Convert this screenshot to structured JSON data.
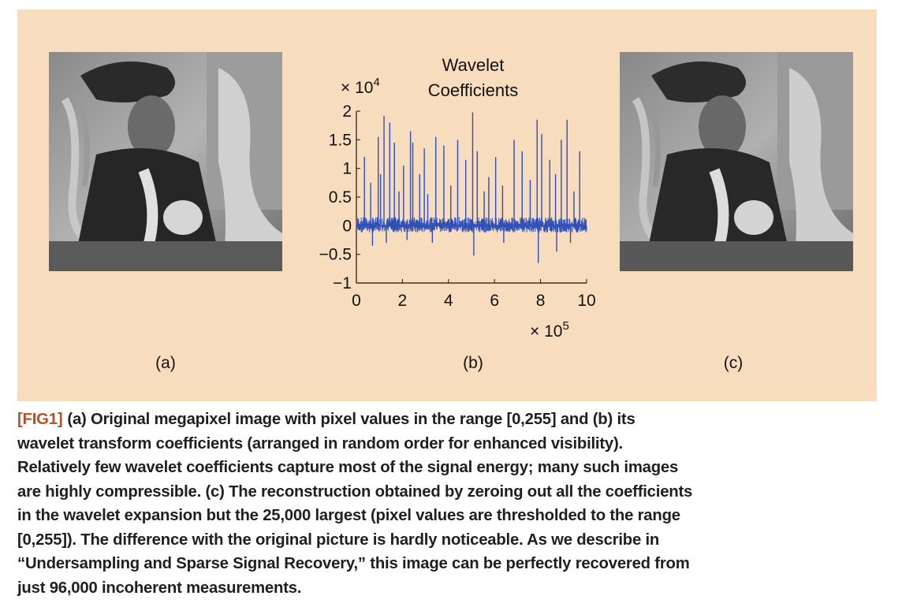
{
  "panel_labels": {
    "a": "(a)",
    "b": "(b)",
    "c": "(c)"
  },
  "colors": {
    "panel_bg": "#f7ddbe",
    "series": "#2e4fb8",
    "caption_tag": "#b4532a"
  },
  "images": {
    "a": {
      "name": "original-megapixel-photo",
      "description_icon": "photo-icon"
    },
    "c": {
      "name": "reconstructed-photo",
      "description_icon": "photo-icon"
    }
  },
  "chart_data": {
    "type": "line",
    "title": "Wavelet Coefficients",
    "title_lines": [
      "Wavelet",
      "Coefficients"
    ],
    "y_multiplier": "× 10",
    "y_multiplier_exp": "4",
    "x_multiplier": "× 10",
    "x_multiplier_exp": "5",
    "xlim": [
      0,
      10
    ],
    "ylim": [
      -1,
      2
    ],
    "x_ticks": [
      "0",
      "2",
      "4",
      "6",
      "8",
      "10"
    ],
    "y_ticks": [
      "2",
      "1.5",
      "1",
      "0.5",
      "0",
      "−0.5",
      "−1"
    ],
    "grid": false,
    "series": [
      {
        "spikes": [
          [
            0.35,
            1.2
          ],
          [
            0.62,
            0.75
          ],
          [
            0.95,
            1.55
          ],
          [
            1.05,
            0.9
          ],
          [
            1.2,
            1.92
          ],
          [
            1.45,
            1.8
          ],
          [
            1.65,
            1.45
          ],
          [
            1.85,
            0.6
          ],
          [
            2.05,
            1.05
          ],
          [
            2.35,
            1.65
          ],
          [
            2.45,
            1.45
          ],
          [
            2.75,
            0.9
          ],
          [
            2.95,
            1.35
          ],
          [
            3.1,
            0.55
          ],
          [
            3.45,
            1.55
          ],
          [
            3.8,
            1.4
          ],
          [
            4.1,
            0.7
          ],
          [
            4.4,
            1.5
          ],
          [
            4.75,
            1.15
          ],
          [
            5.05,
            1.98
          ],
          [
            5.25,
            1.3
          ],
          [
            5.55,
            0.6
          ],
          [
            5.75,
            0.85
          ],
          [
            6.05,
            1.2
          ],
          [
            6.35,
            0.7
          ],
          [
            6.85,
            1.5
          ],
          [
            7.2,
            1.3
          ],
          [
            7.55,
            0.8
          ],
          [
            7.85,
            1.85
          ],
          [
            8.05,
            1.6
          ],
          [
            8.4,
            1.15
          ],
          [
            8.65,
            0.9
          ],
          [
            8.9,
            1.5
          ],
          [
            9.15,
            1.85
          ],
          [
            9.45,
            0.6
          ],
          [
            9.7,
            1.3
          ]
        ],
        "negative_spikes": [
          [
            0.7,
            -0.35
          ],
          [
            1.3,
            -0.3
          ],
          [
            2.2,
            -0.25
          ],
          [
            3.3,
            -0.3
          ],
          [
            5.1,
            -0.52
          ],
          [
            6.4,
            -0.3
          ],
          [
            7.9,
            -0.65
          ],
          [
            8.7,
            -0.45
          ],
          [
            9.3,
            -0.3
          ]
        ],
        "noise_band": [
          -0.12,
          0.15
        ]
      }
    ]
  },
  "caption": {
    "tag": "[FIG1]",
    "text": "(a) Original megapixel image with pixel values in the range [0,255] and (b) its wavelet transform coefficients (arranged in random order for enhanced visibility). Relatively few wavelet coefficients capture most of the signal energy; many such images are highly compressible. (c) The reconstruction obtained by zeroing out all the coefficients in the wavelet expansion but the 25,000 largest (pixel values are thresholded to the range [0,255]). The difference with the original picture is hardly noticeable. As we describe in “Undersampling and Sparse Signal Recovery,” this image can be perfectly recovered from just 96,000 incoherent measurements.",
    "lines": [
      "(a) Original megapixel image with pixel values in the range [0,255] and (b) its",
      "wavelet transform coefficients (arranged in random order for enhanced visibility).",
      "Relatively few wavelet coefficients capture most of the signal energy; many such images",
      "are highly compressible. (c) The reconstruction obtained by zeroing out all the coefficients",
      "in the wavelet expansion but the 25,000 largest (pixel values are thresholded to the range",
      "[0,255]). The difference with the original picture is hardly noticeable. As we describe in",
      "“Undersampling and Sparse Signal Recovery,” this image can be perfectly recovered from",
      "just 96,000 incoherent measurements."
    ]
  }
}
